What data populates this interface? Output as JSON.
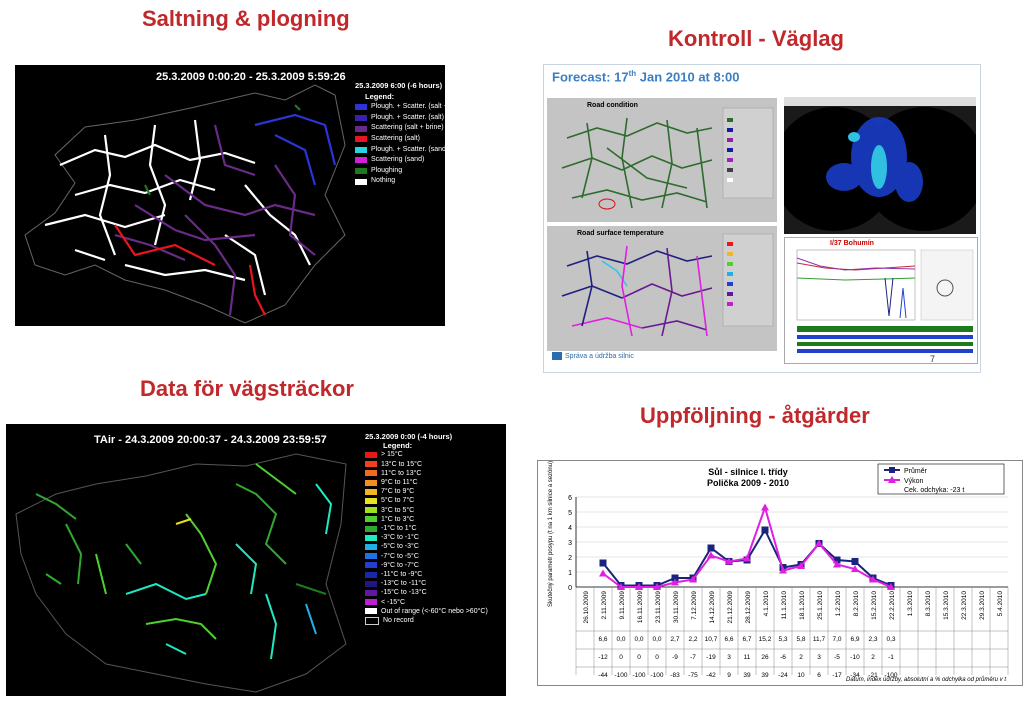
{
  "headings": {
    "top_left": "Saltning & plogning",
    "top_right": "Kontroll - Väglag",
    "bottom_left": "Data för vägsträckor",
    "bottom_right": "Uppföljning - åtgärder"
  },
  "salt_panel": {
    "title": "25.3.2009 0:00:20 - 25.3.2009 5:59:26",
    "legend_header": "25.3.2009 6:00 (-6 hours)",
    "legend_title": "Legend:",
    "legend": [
      {
        "label": "Plough. + Scatter. (salt + brine)",
        "color": "#2b34d4"
      },
      {
        "label": "Plough. + Scatter. (salt)",
        "color": "#3a20b0"
      },
      {
        "label": "Scattering (salt + brine)",
        "color": "#6a2a88"
      },
      {
        "label": "Scattering (salt)",
        "color": "#e8141e"
      },
      {
        "label": "Plough. + Scatter. (sand)",
        "color": "#22d8e0"
      },
      {
        "label": "Scattering (sand)",
        "color": "#d020d8"
      },
      {
        "label": "Ploughing",
        "color": "#1e7a1e"
      },
      {
        "label": "Nothing",
        "color": "#ffffff"
      }
    ]
  },
  "forecast_panel": {
    "title": "Forecast: 17",
    "title_sup": "th",
    "title_rest": " Jan 2010 at 8:00",
    "road_condition": "Road condition",
    "road_surface_temp": "Road surface temperature",
    "chart_label": "I/37 Bohumín",
    "page_number": "7",
    "logo_text": "Správa a údržba silnic"
  },
  "tair_panel": {
    "title": "TAir - 24.3.2009 20:00:37 - 24.3.2009 23:59:57",
    "legend_header": "25.3.2009 0:00 (-4 hours)",
    "legend_title": "Legend:",
    "legend": [
      {
        "label": "> 15°C",
        "color": "#e81818"
      },
      {
        "label": "13°C to 15°C",
        "color": "#f04020"
      },
      {
        "label": "11°C to 13°C",
        "color": "#f06a20"
      },
      {
        "label": "9°C to 11°C",
        "color": "#f09020"
      },
      {
        "label": "7°C to 9°C",
        "color": "#f0b820"
      },
      {
        "label": "5°C to 7°C",
        "color": "#e8e020"
      },
      {
        "label": "3°C to 5°C",
        "color": "#a0e020"
      },
      {
        "label": "1°C to 3°C",
        "color": "#50d030"
      },
      {
        "label": "-1°C to 1°C",
        "color": "#30a830"
      },
      {
        "label": "-3°C to -1°C",
        "color": "#20e8c0"
      },
      {
        "label": "-5°C to -3°C",
        "color": "#20b0e8"
      },
      {
        "label": "-7°C to -5°C",
        "color": "#2070e8"
      },
      {
        "label": "-9°C to -7°C",
        "color": "#2040d0"
      },
      {
        "label": "-11°C to -9°C",
        "color": "#1828a8"
      },
      {
        "label": "-13°C to -11°C",
        "color": "#201880"
      },
      {
        "label": "-15°C to -13°C",
        "color": "#6018a0"
      },
      {
        "label": "< -15°C",
        "color": "#c020d0"
      },
      {
        "label": "Out of range (<-60°C nebo >60°C)",
        "color": "#ffffff"
      },
      {
        "label": "No record",
        "color": "#000000"
      }
    ]
  },
  "chart_data": {
    "type": "line",
    "title": "Sůl - silnice I. třídy",
    "subtitle": "Polička 2009 - 2010",
    "ylabel": "Skutečný parametr posypu (t na 1 km silnice a sezónu)",
    "ylim": [
      0,
      6
    ],
    "yticks": [
      0,
      1,
      2,
      3,
      4,
      5,
      6
    ],
    "legend": {
      "series1": "Průměr",
      "series2": "Výkon",
      "note": "Cek. odchyka: -23 t"
    },
    "categories": [
      "26.10.2009",
      "2.11.2009",
      "9.11.2009",
      "16.11.2009",
      "23.11.2009",
      "30.11.2009",
      "7.12.2009",
      "14.12.2009",
      "21.12.2009",
      "28.12.2009",
      "4.1.2010",
      "11.1.2010",
      "18.1.2010",
      "25.1.2010",
      "1.2.2010",
      "8.2.2010",
      "15.2.2010",
      "22.2.2010",
      "1.3.2010",
      "8.3.2010",
      "15.3.2010",
      "22.3.2010",
      "29.3.2010",
      "5.4.2010"
    ],
    "series": [
      {
        "name": "Průměr",
        "color": "#1a237e",
        "values": [
          null,
          1.6,
          0.1,
          0.1,
          0.1,
          0.6,
          0.6,
          2.6,
          1.7,
          1.8,
          3.8,
          1.3,
          1.5,
          2.9,
          1.8,
          1.7,
          0.6,
          0.1,
          null,
          null,
          null,
          null,
          null,
          null
        ]
      },
      {
        "name": "Výkon",
        "color": "#e020e0",
        "values": [
          null,
          0.9,
          0.0,
          0.0,
          0.0,
          0.3,
          0.5,
          2.1,
          1.7,
          1.9,
          5.3,
          1.1,
          1.4,
          2.9,
          1.5,
          1.2,
          0.5,
          0.0,
          null,
          null,
          null,
          null,
          null,
          null
        ]
      }
    ],
    "table_rows": [
      [
        "",
        "6,6",
        "0,0",
        "0,0",
        "0,0",
        "2,7",
        "2,2",
        "10,7",
        "6,6",
        "6,7",
        "15,2",
        "5,3",
        "5,8",
        "11,7",
        "7,0",
        "6,9",
        "2,3",
        "0,3",
        "",
        "",
        "",
        "",
        "",
        ""
      ],
      [
        "",
        "-12",
        "0",
        "0",
        "0",
        "-9",
        "-7",
        "-19",
        "3",
        "11",
        "26",
        "-6",
        "2",
        "3",
        "-5",
        "-10",
        "2",
        "-1",
        "",
        "",
        "",
        "",
        "",
        ""
      ],
      [
        "",
        "-44",
        "-100",
        "-100",
        "-100",
        "-83",
        "-75",
        "-42",
        "9",
        "39",
        "39",
        "-24",
        "10",
        "6",
        "-17",
        "-34",
        "-21",
        "-100",
        "",
        "",
        "",
        "",
        "",
        ""
      ]
    ],
    "footer_note": "Datum, index údržby, absolutní a % odchylka od průměru v t"
  }
}
